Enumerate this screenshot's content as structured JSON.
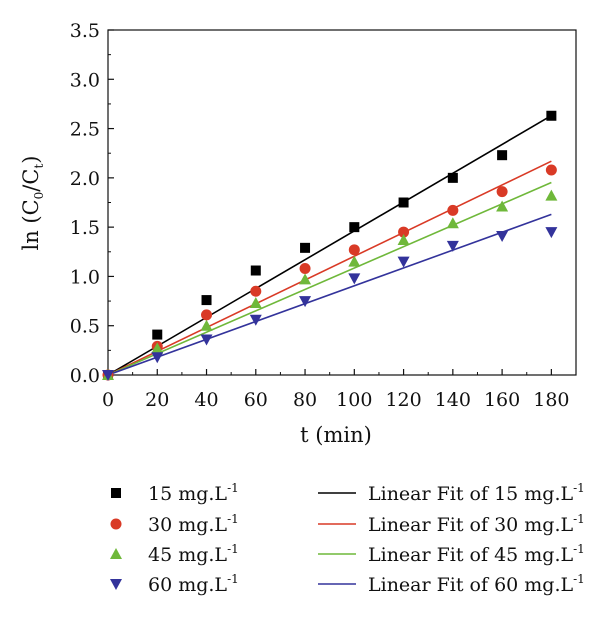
{
  "chart_data": {
    "type": "scatter",
    "xlabel": "t (min)",
    "ylabel": {
      "prefix": "ln (C",
      "sub1": "0",
      "mid": "/C",
      "sub2": "t",
      "suffix": ")"
    },
    "xlim": [
      0,
      190
    ],
    "ylim": [
      0,
      3.5
    ],
    "xticks": [
      0,
      20,
      40,
      60,
      80,
      100,
      120,
      140,
      160,
      180
    ],
    "yticks": [
      "0.0",
      "0.5",
      "1.0",
      "1.5",
      "2.0",
      "2.5",
      "3.0",
      "3.5"
    ],
    "grid": false,
    "legend_position": "bottom",
    "series": [
      {
        "name": "15 mg.L",
        "unit_sup": "-1",
        "fit_name": "Linear Fit of 15 mg.L",
        "marker": "square",
        "color": "#000000",
        "x": [
          0,
          20,
          40,
          60,
          80,
          100,
          120,
          140,
          160,
          180
        ],
        "y": [
          0.0,
          0.41,
          0.76,
          1.06,
          1.29,
          1.5,
          1.75,
          2.0,
          2.23,
          2.63
        ],
        "fit": {
          "slope": 0.01462,
          "intercept": 0.0
        }
      },
      {
        "name": "30 mg.L",
        "unit_sup": "-1",
        "fit_name": "Linear Fit of 30 mg.L",
        "marker": "circle",
        "color": "#d93a26",
        "x": [
          0,
          20,
          40,
          60,
          80,
          100,
          120,
          140,
          160,
          180
        ],
        "y": [
          0.0,
          0.29,
          0.61,
          0.85,
          1.08,
          1.27,
          1.45,
          1.67,
          1.86,
          2.08
        ],
        "fit": {
          "slope": 0.01205,
          "intercept": 0.0
        }
      },
      {
        "name": "45 mg.L",
        "unit_sup": "-1",
        "fit_name": "Linear Fit of 45 mg.L",
        "marker": "triangle-up",
        "color": "#6fb83a",
        "x": [
          0,
          20,
          40,
          60,
          80,
          100,
          120,
          140,
          160,
          180
        ],
        "y": [
          0.0,
          0.27,
          0.5,
          0.73,
          0.97,
          1.15,
          1.37,
          1.54,
          1.71,
          1.82
        ],
        "fit": {
          "slope": 0.01085,
          "intercept": 0.0
        }
      },
      {
        "name": "60 mg.L",
        "unit_sup": "-1",
        "fit_name": "Linear Fit of 60 mg.L",
        "marker": "triangle-down",
        "color": "#33339b",
        "x": [
          0,
          20,
          40,
          60,
          80,
          100,
          120,
          140,
          160,
          180
        ],
        "y": [
          0.0,
          0.18,
          0.36,
          0.56,
          0.75,
          0.98,
          1.15,
          1.31,
          1.41,
          1.45
        ],
        "fit": {
          "slope": 0.00905,
          "intercept": 0.0
        }
      }
    ]
  }
}
